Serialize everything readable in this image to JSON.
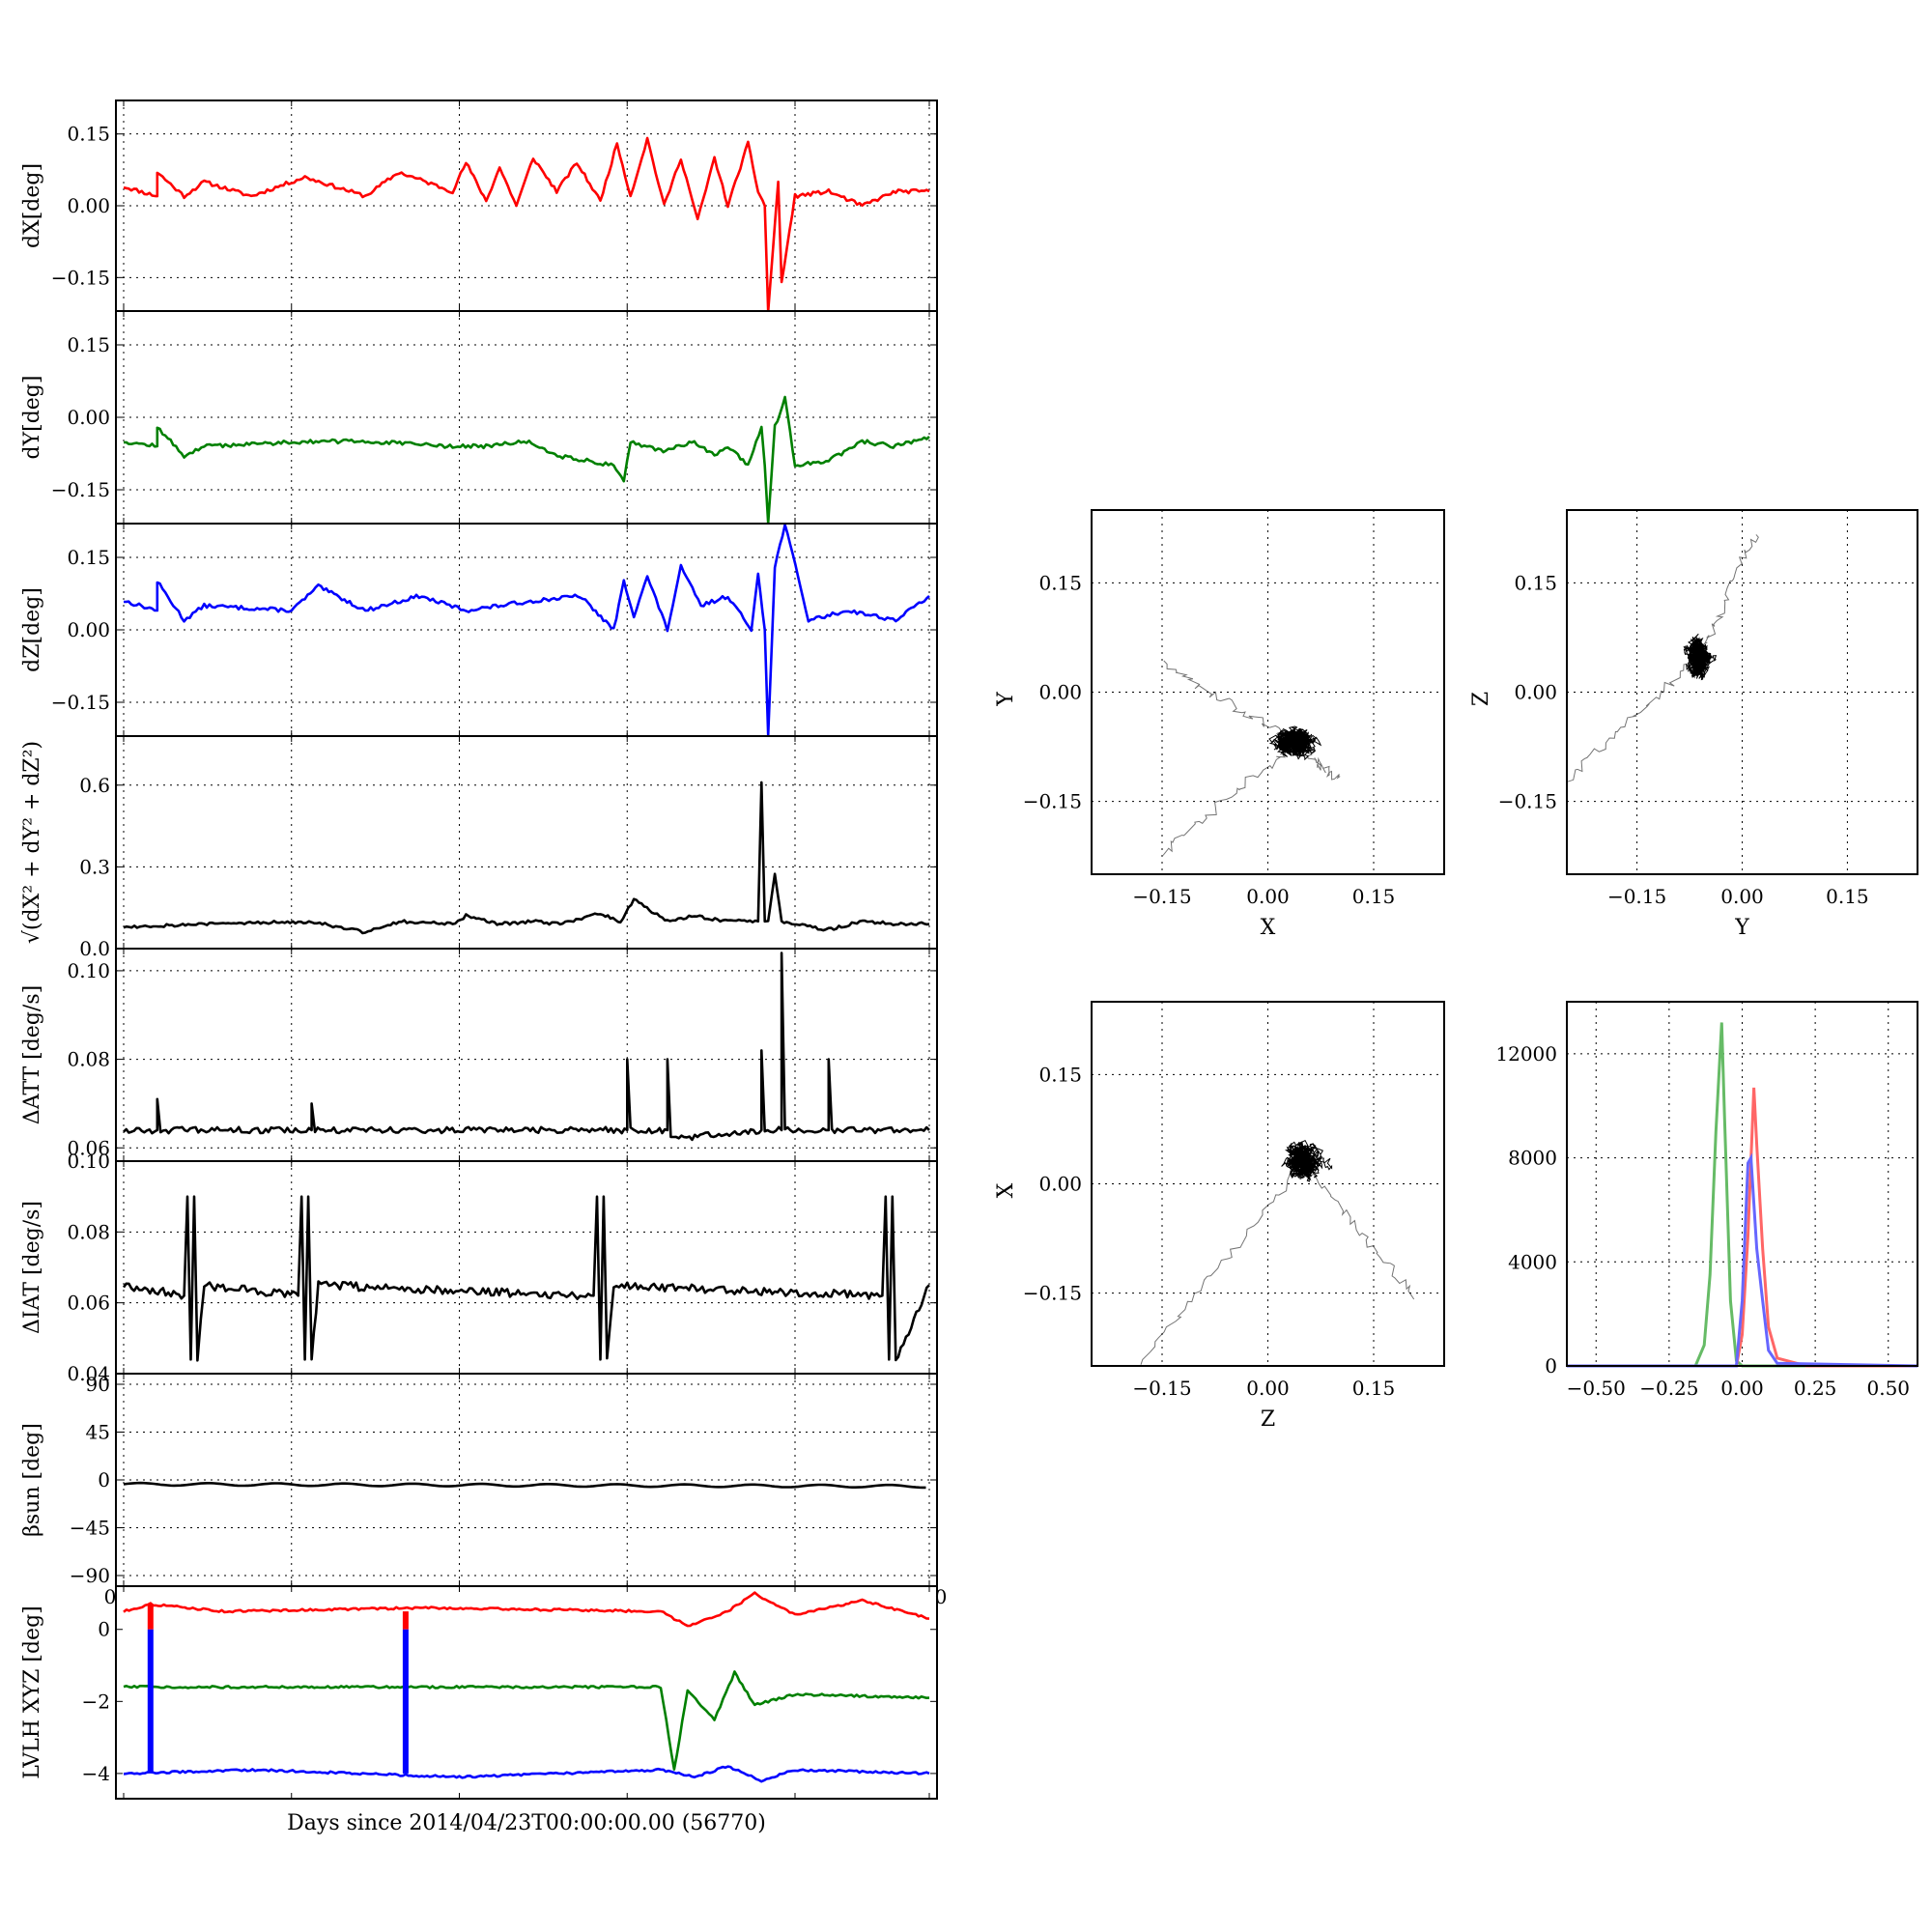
{
  "figure": {
    "xlabel": "Days since 2014/04/23T00:00:00.00 (56770)",
    "stray_tick_left": "0",
    "stray_tick_right": "0"
  },
  "colors": {
    "red": "#ff0000",
    "green": "#008000",
    "blue": "#0000ff",
    "black": "#000000",
    "hist_red": "#ff6666",
    "hist_green": "#66bb66",
    "hist_blue": "#6666ff"
  },
  "chart_data": [
    {
      "id": "dx",
      "type": "line",
      "ylabel": "dX[deg]",
      "ylim": [
        -0.22,
        0.22
      ],
      "yticks": [
        0.15,
        0.0,
        -0.15
      ],
      "ytick_labels": [
        "0.15",
        "0.00",
        "−0.15"
      ],
      "grid": true,
      "series": [
        {
          "color": "red",
          "x": [
            0.0,
            0.5,
            0.5,
            0.9,
            1.2,
            1.9,
            2.7,
            3.6,
            4.1,
            4.9,
            5.1,
            5.4,
            5.6,
            5.85,
            6.1,
            6.45,
            6.75,
            7.1,
            7.35,
            7.55,
            7.8,
            8.05,
            8.3,
            8.55,
            8.8,
            9.0,
            9.3,
            9.45,
            9.55,
            9.6,
            9.75,
            9.8,
            10.0,
            10.5,
            11.0,
            11.5,
            12.0
          ],
          "y": [
            0.04,
            0.02,
            0.07,
            0.02,
            0.05,
            0.02,
            0.06,
            0.02,
            0.07,
            0.03,
            0.09,
            0.01,
            0.08,
            0.0,
            0.1,
            0.03,
            0.09,
            0.01,
            0.13,
            0.02,
            0.14,
            0.0,
            0.1,
            -0.03,
            0.1,
            0.0,
            0.13,
            0.03,
            0.0,
            -0.22,
            0.05,
            -0.16,
            0.02,
            0.03,
            0.0,
            0.03,
            0.03
          ]
        }
      ]
    },
    {
      "id": "dy",
      "type": "line",
      "ylabel": "dY[deg]",
      "ylim": [
        -0.22,
        0.22
      ],
      "yticks": [
        0.15,
        0.0,
        -0.15
      ],
      "ytick_labels": [
        "0.15",
        "0.00",
        "−0.15"
      ],
      "grid": true,
      "series": [
        {
          "color": "green",
          "x": [
            0.0,
            0.5,
            0.5,
            0.9,
            1.2,
            2.7,
            3.6,
            4.9,
            5.4,
            6.0,
            6.5,
            7.3,
            7.45,
            7.55,
            8.0,
            8.5,
            8.8,
            9.0,
            9.3,
            9.5,
            9.55,
            9.6,
            9.7,
            9.85,
            10.0,
            10.5,
            11.0,
            11.5,
            12.0
          ],
          "y": [
            -0.05,
            -0.06,
            -0.02,
            -0.08,
            -0.06,
            -0.05,
            -0.05,
            -0.06,
            -0.06,
            -0.05,
            -0.08,
            -0.1,
            -0.13,
            -0.05,
            -0.07,
            -0.05,
            -0.08,
            -0.06,
            -0.1,
            -0.02,
            -0.1,
            -0.22,
            -0.02,
            0.04,
            -0.1,
            -0.09,
            -0.05,
            -0.06,
            -0.04
          ]
        }
      ]
    },
    {
      "id": "dz",
      "type": "line",
      "ylabel": "dZ[deg]",
      "ylim": [
        -0.22,
        0.22
      ],
      "yticks": [
        0.15,
        0.0,
        -0.15
      ],
      "ytick_labels": [
        "0.15",
        "0.00",
        "−0.15"
      ],
      "grid": true,
      "series": [
        {
          "color": "blue",
          "x": [
            0.0,
            0.5,
            0.5,
            0.9,
            1.2,
            2.5,
            2.9,
            3.6,
            4.4,
            5.1,
            6.1,
            6.8,
            7.3,
            7.45,
            7.6,
            7.8,
            8.1,
            8.3,
            8.6,
            9.0,
            9.35,
            9.45,
            9.55,
            9.6,
            9.7,
            9.85,
            10.2,
            10.8,
            11.5,
            12.0
          ],
          "y": [
            0.06,
            0.04,
            0.1,
            0.02,
            0.05,
            0.04,
            0.09,
            0.04,
            0.07,
            0.04,
            0.06,
            0.07,
            0.0,
            0.1,
            0.03,
            0.11,
            0.0,
            0.13,
            0.05,
            0.07,
            0.0,
            0.12,
            0.0,
            -0.22,
            0.13,
            0.22,
            0.02,
            0.04,
            0.02,
            0.07
          ]
        }
      ]
    },
    {
      "id": "dr",
      "type": "line",
      "ylabel": "√(dX² + dY² + dZ²)",
      "ylim": [
        0.0,
        0.78
      ],
      "yticks": [
        0.6,
        0.3,
        0.0
      ],
      "ytick_labels": [
        "0.6",
        "0.3",
        "0.0"
      ],
      "grid": true,
      "series": [
        {
          "color": "black",
          "x": [
            0.0,
            1.2,
            2.8,
            3.6,
            4.1,
            4.9,
            5.1,
            5.6,
            6.1,
            6.5,
            7.1,
            7.4,
            7.6,
            8.1,
            8.5,
            9.0,
            9.45,
            9.5,
            9.55,
            9.6,
            9.7,
            9.8,
            9.95,
            10.5,
            11.0,
            11.5,
            12.0
          ],
          "y": [
            0.08,
            0.09,
            0.1,
            0.06,
            0.1,
            0.09,
            0.12,
            0.09,
            0.1,
            0.09,
            0.13,
            0.1,
            0.18,
            0.1,
            0.12,
            0.1,
            0.1,
            0.61,
            0.1,
            0.1,
            0.27,
            0.1,
            0.09,
            0.07,
            0.1,
            0.09,
            0.09
          ]
        }
      ]
    },
    {
      "id": "datt",
      "type": "line",
      "ylabel": "ΔATT [deg/s]",
      "ylim": [
        0.057,
        0.105
      ],
      "yticks": [
        0.1,
        0.08,
        0.06
      ],
      "ytick_labels": [
        "0.10",
        "0.08",
        "0.06"
      ],
      "grid": true,
      "series": [
        {
          "color": "black",
          "x": [
            0.0,
            0.5,
            0.5,
            0.55,
            2.8,
            2.8,
            2.85,
            7.5,
            7.5,
            7.55,
            8.1,
            8.1,
            8.15,
            9.5,
            9.5,
            9.55,
            9.8,
            9.8,
            9.85,
            10.5,
            10.5,
            10.55,
            12.0
          ],
          "y": [
            0.064,
            0.064,
            0.071,
            0.064,
            0.064,
            0.07,
            0.064,
            0.064,
            0.08,
            0.064,
            0.064,
            0.08,
            0.062,
            0.064,
            0.082,
            0.064,
            0.064,
            0.104,
            0.064,
            0.064,
            0.08,
            0.064,
            0.064
          ]
        }
      ]
    },
    {
      "id": "diat",
      "type": "line",
      "ylabel": "ΔIAT [deg/s]",
      "ylim": [
        0.04,
        0.1
      ],
      "yticks": [
        0.1,
        0.08,
        0.06,
        0.04
      ],
      "ytick_labels": [
        "0.10",
        "0.08",
        "0.06",
        "0.04"
      ],
      "grid": true,
      "series": [
        {
          "color": "black",
          "x": [
            0.0,
            0.9,
            0.95,
            1.0,
            1.05,
            1.1,
            1.2,
            2.6,
            2.65,
            2.7,
            2.75,
            2.8,
            2.9,
            7.0,
            7.05,
            7.1,
            7.15,
            7.2,
            7.3,
            11.3,
            11.35,
            11.4,
            11.45,
            11.5,
            12.0
          ],
          "y": [
            0.065,
            0.062,
            0.09,
            0.044,
            0.09,
            0.044,
            0.065,
            0.062,
            0.09,
            0.044,
            0.09,
            0.044,
            0.065,
            0.062,
            0.09,
            0.044,
            0.09,
            0.044,
            0.065,
            0.062,
            0.09,
            0.044,
            0.09,
            0.044,
            0.065
          ]
        }
      ]
    },
    {
      "id": "beta",
      "type": "line",
      "ylabel": "βsun [deg]",
      "ylim": [
        -100,
        100
      ],
      "yticks": [
        90,
        45,
        0,
        -45,
        -90
      ],
      "ytick_labels": [
        "90",
        "45",
        "0",
        "−45",
        "−90"
      ],
      "grid": true,
      "series": [
        {
          "color": "black",
          "x": [
            0.0,
            12.0
          ],
          "y": [
            -4,
            -6
          ]
        }
      ]
    },
    {
      "id": "lvlh",
      "type": "line",
      "ylabel": "LVLH XYZ [deg]",
      "ylim": [
        -4.7,
        1.2
      ],
      "yticks": [
        0,
        -2,
        -4
      ],
      "ytick_labels": [
        "0",
        "−2",
        "−4"
      ],
      "grid": false,
      "series": [
        {
          "color": "red",
          "x": [
            0.0,
            0.4,
            1.5,
            4.5,
            8.0,
            8.4,
            9.0,
            9.4,
            10.0,
            11.0,
            12.0
          ],
          "y": [
            0.5,
            0.7,
            0.5,
            0.6,
            0.5,
            0.1,
            0.5,
            1.0,
            0.4,
            0.8,
            0.3
          ]
        },
        {
          "color": "green",
          "x": [
            0.0,
            2.0,
            5.0,
            8.0,
            8.2,
            8.4,
            8.8,
            9.1,
            9.4,
            10.0,
            12.0
          ],
          "y": [
            -1.6,
            -1.6,
            -1.6,
            -1.6,
            -3.9,
            -1.7,
            -2.5,
            -1.2,
            -2.1,
            -1.8,
            -1.9
          ]
        },
        {
          "color": "blue",
          "x": [
            0.0,
            2.0,
            5.0,
            8.0,
            8.5,
            9.0,
            9.5,
            10.0,
            12.0
          ],
          "y": [
            -4.0,
            -3.9,
            -4.1,
            -3.9,
            -4.1,
            -3.8,
            -4.2,
            -3.9,
            -4.0
          ]
        }
      ],
      "markers": [
        {
          "x": 0.4,
          "y0": -4.0,
          "y1": 0.7
        },
        {
          "x": 4.2,
          "y0": -4.0,
          "y1": 0.5
        }
      ]
    },
    {
      "id": "xy",
      "type": "scatter",
      "xlabel": "X",
      "ylabel": "Y",
      "xlim": [
        -0.25,
        0.25
      ],
      "ylim": [
        -0.25,
        0.25
      ],
      "ticks": [
        -0.15,
        0.0,
        0.15
      ],
      "tick_labels": [
        "−0.15",
        "0.00",
        "0.15"
      ],
      "grid": true,
      "center": [
        0.04,
        -0.07
      ],
      "spread": [
        0.025,
        0.02
      ],
      "arms": [
        [
          0.04,
          -0.07,
          -0.15,
          0.04
        ],
        [
          0.04,
          -0.07,
          0.1,
          -0.12
        ],
        [
          0.04,
          -0.07,
          -0.15,
          -0.22
        ]
      ]
    },
    {
      "id": "zy",
      "type": "scatter",
      "xlabel": "Y",
      "ylabel": "Z",
      "xlim": [
        -0.25,
        0.25
      ],
      "ylim": [
        -0.25,
        0.25
      ],
      "ticks": [
        -0.15,
        0.0,
        0.15
      ],
      "tick_labels": [
        "−0.15",
        "0.00",
        "0.15"
      ],
      "grid": true,
      "center": [
        -0.06,
        0.05
      ],
      "spread": [
        0.018,
        0.025
      ],
      "arms": [
        [
          -0.06,
          0.05,
          0.02,
          0.22
        ],
        [
          -0.06,
          0.05,
          -0.25,
          -0.12
        ]
      ]
    },
    {
      "id": "zx",
      "type": "scatter",
      "xlabel": "Z",
      "ylabel": "X",
      "xlim": [
        -0.25,
        0.25
      ],
      "ylim": [
        -0.25,
        0.25
      ],
      "ticks": [
        -0.15,
        0.0,
        0.15
      ],
      "tick_labels": [
        "−0.15",
        "0.00",
        "0.15"
      ],
      "grid": true,
      "center": [
        0.05,
        0.03
      ],
      "spread": [
        0.022,
        0.022
      ],
      "arms": [
        [
          0.05,
          0.03,
          0.21,
          -0.16
        ],
        [
          0.05,
          0.03,
          -0.18,
          -0.25
        ]
      ]
    },
    {
      "id": "hist",
      "type": "line",
      "xlim": [
        -0.6,
        0.6
      ],
      "ylim": [
        0,
        14000
      ],
      "xticks": [
        -0.5,
        -0.25,
        0.0,
        0.25,
        0.5
      ],
      "xtick_labels": [
        "−0.50",
        "−0.25",
        "0.00",
        "0.25",
        "0.50"
      ],
      "yticks": [
        12000,
        8000,
        4000,
        0
      ],
      "ytick_labels": [
        "12000",
        "8000",
        "4000",
        "0"
      ],
      "grid": true,
      "series": [
        {
          "color": "hist_green",
          "x": [
            -0.6,
            -0.16,
            -0.13,
            -0.11,
            -0.09,
            -0.07,
            -0.06,
            -0.04,
            -0.02,
            0.0,
            0.6
          ],
          "y": [
            0,
            0,
            800,
            3500,
            9000,
            13200,
            9500,
            2500,
            200,
            0,
            0
          ]
        },
        {
          "color": "hist_red",
          "x": [
            -0.6,
            -0.02,
            0.0,
            0.02,
            0.04,
            0.05,
            0.07,
            0.09,
            0.12,
            0.22,
            0.6
          ],
          "y": [
            0,
            0,
            1200,
            5000,
            10700,
            8500,
            4500,
            1500,
            300,
            0,
            0
          ]
        },
        {
          "color": "hist_blue",
          "x": [
            -0.6,
            -0.02,
            0.0,
            0.02,
            0.03,
            0.05,
            0.07,
            0.09,
            0.12,
            0.6
          ],
          "y": [
            0,
            0,
            2500,
            7800,
            8000,
            4500,
            2500,
            600,
            100,
            0
          ]
        }
      ]
    }
  ]
}
